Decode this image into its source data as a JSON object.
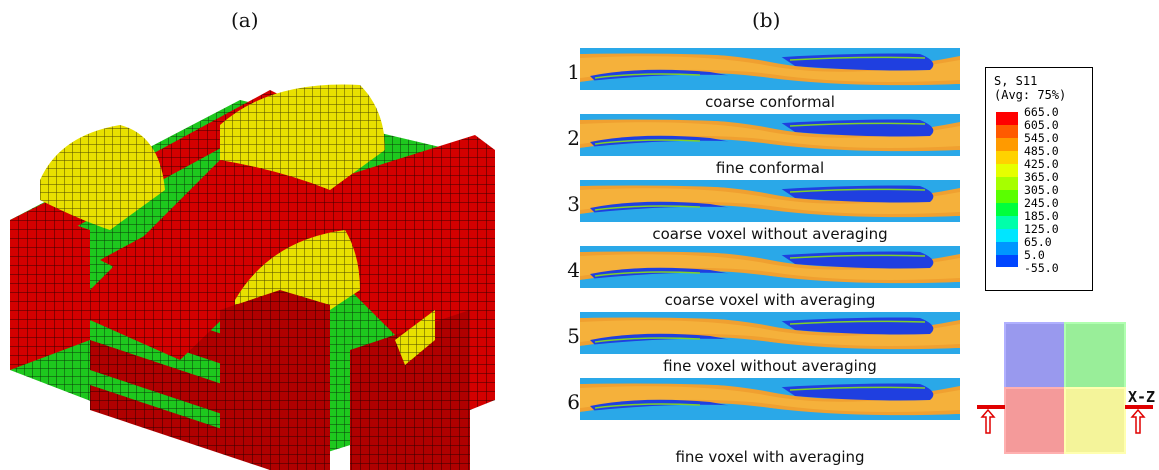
{
  "panel_a": {
    "label": "(a)"
  },
  "panel_b": {
    "label": "(b)",
    "rows": [
      {
        "num": "1",
        "caption": "coarse conformal"
      },
      {
        "num": "2",
        "caption": "fine conformal"
      },
      {
        "num": "3",
        "caption": "coarse voxel without averaging"
      },
      {
        "num": "4",
        "caption": "coarse voxel with averaging"
      },
      {
        "num": "5",
        "caption": "fine voxel without averaging"
      },
      {
        "num": "6",
        "caption": "fine voxel with averaging"
      }
    ]
  },
  "legend": {
    "title_line1": "S, S11",
    "title_line2": "(Avg: 75%)",
    "values": [
      "665.0",
      "605.0",
      "545.0",
      "485.0",
      "425.0",
      "365.0",
      "305.0",
      "245.0",
      "185.0",
      "125.0",
      "65.0",
      "5.0",
      "-55.0"
    ],
    "colors": [
      "#ff0000",
      "#ff5a00",
      "#ff9a00",
      "#ffd200",
      "#e6ff00",
      "#a6ff00",
      "#5aff00",
      "#00ff3c",
      "#00ffaa",
      "#00e6ff",
      "#0096ff",
      "#0046ff",
      "#0000ff"
    ]
  },
  "section_view": {
    "label": "X-Z"
  },
  "colors": {
    "red": "#d40000",
    "yellow": "#e8e000",
    "green": "#1ec81e",
    "field_blue": "#1f3fe0",
    "field_cyan": "#2aa8e8",
    "field_green": "#7fd02a",
    "field_orange": "#f0a030"
  }
}
